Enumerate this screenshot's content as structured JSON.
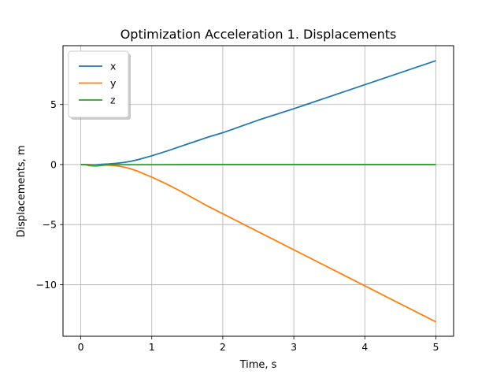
{
  "chart_data": {
    "type": "line",
    "title": "Optimization Acceleration 1. Displacements",
    "xlabel": "Time, s",
    "ylabel": "Displacements, m",
    "xlim": [
      -0.25,
      5.25
    ],
    "ylim": [
      -14.3,
      9.9
    ],
    "xticks": [
      0,
      1,
      2,
      3,
      4,
      5
    ],
    "xtick_labels": [
      "0",
      "1",
      "2",
      "3",
      "4",
      "5"
    ],
    "yticks": [
      5,
      0,
      -5,
      -10
    ],
    "ytick_labels": [
      "5",
      "0",
      "−5",
      "−10"
    ],
    "grid": true,
    "legend_position": "upper-left",
    "series": [
      {
        "name": "x",
        "color": "#1f77b4",
        "x": [
          0,
          0.1,
          0.2,
          0.3,
          0.4,
          0.5,
          0.6,
          0.7,
          0.8,
          0.9,
          1.0,
          1.2,
          1.4,
          1.6,
          1.8,
          2.0,
          2.5,
          3.0,
          3.5,
          4.0,
          4.5,
          5.0
        ],
        "y": [
          0,
          0,
          -0.01,
          0.02,
          0.05,
          0.1,
          0.17,
          0.27,
          0.4,
          0.56,
          0.73,
          1.1,
          1.5,
          1.9,
          2.3,
          2.65,
          3.7,
          4.65,
          5.65,
          6.65,
          7.65,
          8.65
        ]
      },
      {
        "name": "y",
        "color": "#ff7f0e",
        "x": [
          0,
          0.1,
          0.2,
          0.3,
          0.4,
          0.5,
          0.6,
          0.7,
          0.8,
          0.9,
          1.0,
          1.2,
          1.4,
          1.6,
          1.8,
          2.0,
          2.5,
          3.0,
          3.5,
          4.0,
          4.5,
          5.0
        ],
        "y": [
          0,
          -0.02,
          -0.05,
          -0.05,
          -0.05,
          -0.1,
          -0.2,
          -0.35,
          -0.55,
          -0.8,
          -1.05,
          -1.6,
          -2.2,
          -2.85,
          -3.5,
          -4.1,
          -5.6,
          -7.1,
          -8.6,
          -10.1,
          -11.6,
          -13.1
        ]
      },
      {
        "name": "z",
        "color": "#2ca02c",
        "x": [
          0,
          0.05,
          0.1,
          0.15,
          0.2,
          0.25,
          0.3,
          0.35,
          0.4,
          0.5,
          0.7,
          1.0,
          1.5,
          2.0,
          3.0,
          4.0,
          5.0
        ],
        "y": [
          0,
          0,
          -0.05,
          -0.1,
          -0.12,
          -0.1,
          -0.06,
          -0.03,
          -0.02,
          -0.01,
          -0.01,
          -0.01,
          0,
          0,
          0,
          0,
          0
        ]
      }
    ]
  }
}
